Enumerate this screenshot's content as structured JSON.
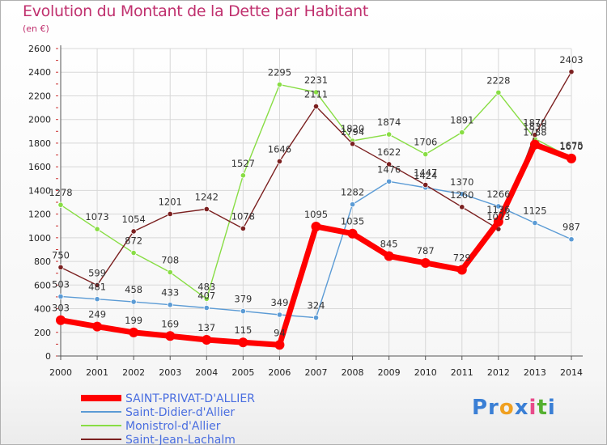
{
  "title": "Evolution du Montant de la Dette par Habitant",
  "subtitle": "(en €)",
  "logo_text": "Proxiti",
  "chart_data": {
    "type": "line",
    "title": "Evolution du Montant de la Dette par Habitant",
    "ylabel": "(en €)",
    "x": [
      "2000",
      "2001",
      "2002",
      "2003",
      "2004",
      "2005",
      "2006",
      "2007",
      "2008",
      "2009",
      "2010",
      "2011",
      "2012",
      "2013",
      "2014"
    ],
    "ylim": [
      0,
      2600
    ],
    "yticks": [
      0,
      200,
      400,
      600,
      800,
      1000,
      1200,
      1400,
      1600,
      1800,
      2000,
      2200,
      2400,
      2600
    ],
    "grid": true,
    "legend_position": "bottom-left",
    "series": [
      {
        "name": "SAINT-PRIVAT-D'ALLIER",
        "color": "#ff0000",
        "values": [
          303,
          249,
          199,
          169,
          137,
          115,
          94,
          1095,
          1035,
          845,
          787,
          729,
          1136,
          1788,
          1670
        ]
      },
      {
        "name": "Saint-Didier-d'Allier",
        "color": "#5b9bd5",
        "values": [
          503,
          481,
          458,
          433,
          407,
          379,
          349,
          324,
          1282,
          1476,
          1424,
          1370,
          1266,
          1125,
          987
        ]
      },
      {
        "name": "Monistrol-d'Allier",
        "color": "#88dd44",
        "values": [
          1278,
          1073,
          872,
          708,
          483,
          1527,
          2295,
          2231,
          1820,
          1874,
          1706,
          1891,
          2228,
          1838,
          1675
        ]
      },
      {
        "name": "Saint-Jean-Lachalm",
        "color": "#7b2020",
        "values": [
          750,
          599,
          1054,
          1201,
          1242,
          1078,
          1646,
          2111,
          1794,
          1622,
          1447,
          1260,
          1073,
          1870,
          2403
        ]
      }
    ]
  }
}
